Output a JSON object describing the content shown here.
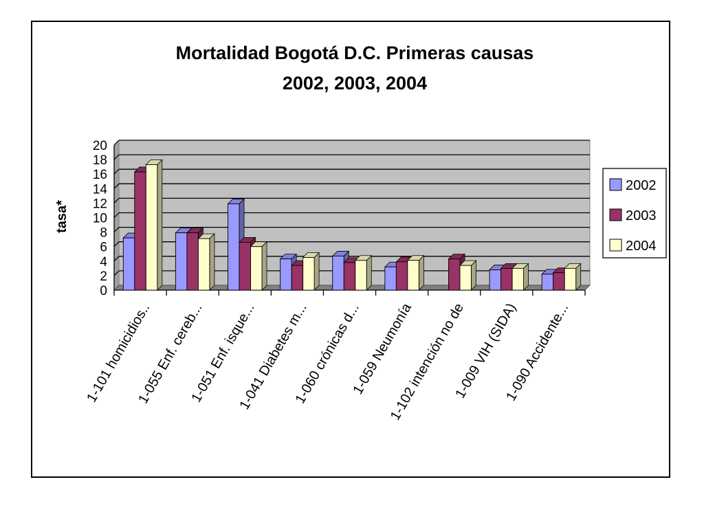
{
  "chart_data": {
    "type": "bar",
    "title": [
      "Mortalidad Bogotá D.C. Primeras causas",
      "2002, 2003, 2004"
    ],
    "xlabel": "",
    "ylabel": "tasa*",
    "ylim": [
      0,
      20
    ],
    "yticks": [
      0,
      2,
      4,
      6,
      8,
      10,
      12,
      14,
      16,
      18,
      20
    ],
    "grid": true,
    "legend_position": "right",
    "categories": [
      "1-101 homicidios..",
      "1-055 Enf. cereb...",
      "1-051 Enf. isque...",
      "1-041 Diabetes m...",
      "1-060  crónicas d...",
      "1-059 Neumonía",
      "1-102 intención no de",
      "1-009  VIH (SIDA)",
      "1-090 Accidente..."
    ],
    "series": [
      {
        "name": "2002",
        "color": "#9999ff",
        "values": [
          7.2,
          7.9,
          11.9,
          4.3,
          4.7,
          3.2,
          null,
          2.8,
          2.2
        ]
      },
      {
        "name": "2003",
        "color": "#993366",
        "values": [
          16.3,
          7.9,
          6.6,
          3.4,
          3.8,
          3.9,
          4.3,
          3.0,
          2.4
        ]
      },
      {
        "name": "2004",
        "color": "#ffffcc",
        "values": [
          17.3,
          7.1,
          6.0,
          4.5,
          4.1,
          4.1,
          3.4,
          3.0,
          3.0
        ]
      }
    ],
    "plot_background": "#c0c0c0"
  }
}
